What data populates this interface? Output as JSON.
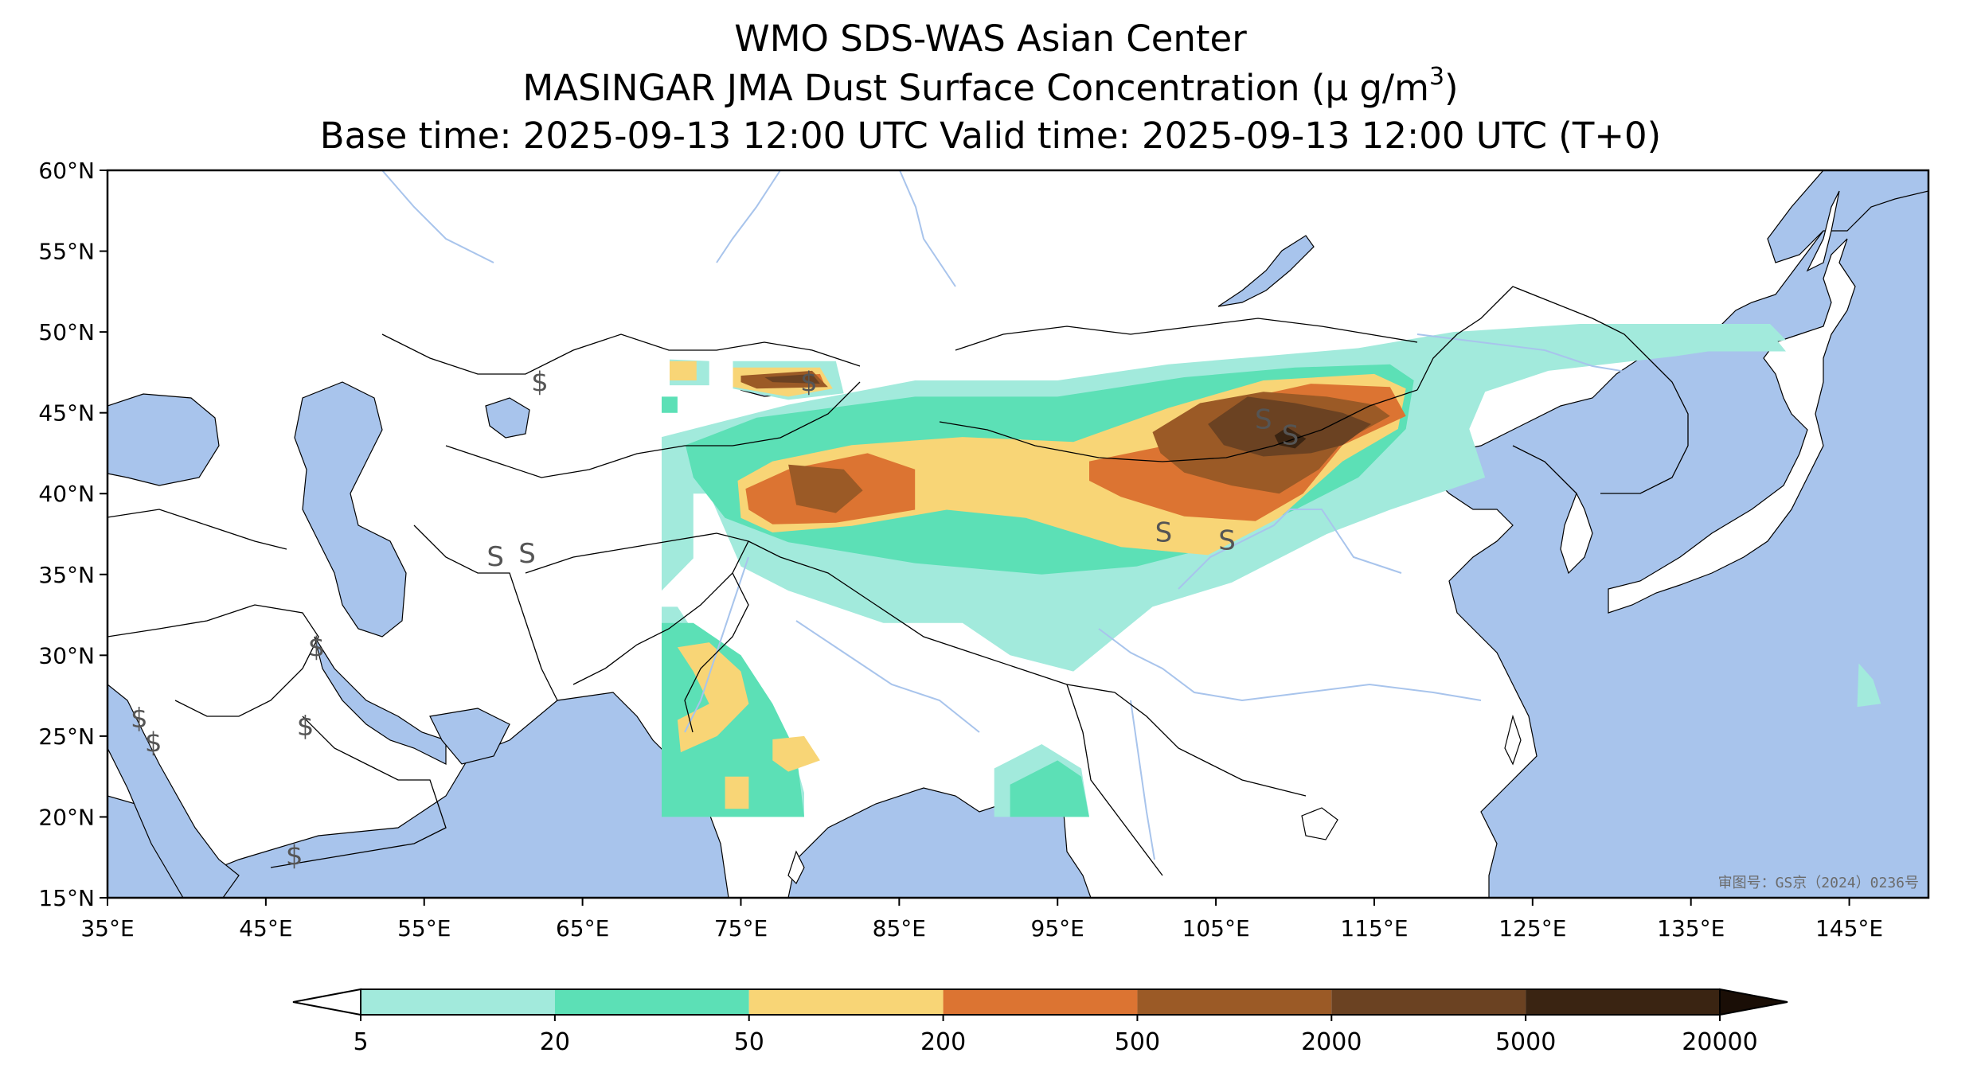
{
  "title": {
    "line1": "WMO SDS-WAS Asian Center",
    "line2_prefix": "MASINGAR JMA Dust Surface Concentration (",
    "line2_unit": "μ g/m",
    "line2_exp": "3",
    "line2_suffix": ")",
    "line3": "Base time: 2025-09-13 12:00 UTC Valid time: 2025-09-13 12:00 UTC (T+0)"
  },
  "map": {
    "lon_range": [
      35,
      150
    ],
    "lat_range": [
      15,
      60
    ],
    "lon_ticks": [
      "35°E",
      "45°E",
      "55°E",
      "65°E",
      "75°E",
      "85°E",
      "95°E",
      "105°E",
      "115°E",
      "125°E",
      "135°E",
      "145°E"
    ],
    "lat_ticks": [
      "15°N",
      "20°N",
      "25°N",
      "30°N",
      "35°N",
      "40°N",
      "45°N",
      "50°N",
      "55°N",
      "60°N"
    ],
    "approval_number": "审图号：GS京（2024）0236号",
    "colors": {
      "ocean": "#a8c4ec",
      "land": "#ffffff",
      "border": "#000000",
      "river": "#a8c4ec",
      "lake": "#a8c4ec"
    },
    "station_marks": [
      {
        "lon": 61.5,
        "lat": 36.2,
        "symbol": "S"
      },
      {
        "lon": 59.5,
        "lat": 36.0,
        "symbol": "S"
      },
      {
        "lon": 62.3,
        "lat": 46.8,
        "symbol": "$"
      },
      {
        "lon": 37.0,
        "lat": 26.0,
        "symbol": "$"
      },
      {
        "lon": 37.9,
        "lat": 24.5,
        "symbol": "$"
      },
      {
        "lon": 47.5,
        "lat": 25.5,
        "symbol": "$"
      },
      {
        "lon": 48.2,
        "lat": 30.4,
        "symbol": "$"
      },
      {
        "lon": 46.8,
        "lat": 17.5,
        "symbol": "$"
      },
      {
        "lon": 79.3,
        "lat": 46.8,
        "symbol": "$"
      },
      {
        "lon": 101.7,
        "lat": 37.5,
        "symbol": "S"
      },
      {
        "lon": 105.7,
        "lat": 37.0,
        "symbol": "S"
      },
      {
        "lon": 108.0,
        "lat": 44.5,
        "symbol": "S"
      },
      {
        "lon": 109.7,
        "lat": 43.5,
        "symbol": "S"
      }
    ]
  },
  "chart_data": {
    "type": "heatmap",
    "variable": "Dust Surface Concentration",
    "unit": "μg/m3",
    "domain": {
      "lon": [
        70,
        150
      ],
      "lat": [
        20,
        50
      ]
    },
    "colorbar": {
      "ticks": [
        "5",
        "20",
        "50",
        "200",
        "500",
        "2000",
        "5000",
        "20000"
      ],
      "bins": [
        {
          "range": [
            5,
            20
          ],
          "color": "#a2eadc"
        },
        {
          "range": [
            20,
            50
          ],
          "color": "#5ce0b6"
        },
        {
          "range": [
            50,
            200
          ],
          "color": "#f8d576"
        },
        {
          "range": [
            200,
            500
          ],
          "color": "#dc7432"
        },
        {
          "range": [
            500,
            2000
          ],
          "color": "#9b5a26"
        },
        {
          "range": [
            2000,
            5000
          ],
          "color": "#6b4222"
        },
        {
          "range": [
            5000,
            20000
          ],
          "color": "#3a2412"
        }
      ],
      "under_color": "#ffffff",
      "over_color": "#1a0e06",
      "extend": "both"
    },
    "regions": [
      {
        "level": "5-20",
        "color": "#a2eadc",
        "polys": [
          [
            [
              70,
              43.5
            ],
            [
              78,
              45.5
            ],
            [
              86,
              47
            ],
            [
              95,
              47
            ],
            [
              102,
              48
            ],
            [
              108,
              48.5
            ],
            [
              114,
              49
            ],
            [
              120,
              50
            ],
            [
              128,
              50.5
            ],
            [
              140,
              50.5
            ],
            [
              141,
              49.5
            ],
            [
              134,
              48.5
            ],
            [
              126,
              47.6
            ],
            [
              122,
              46.3
            ],
            [
              121,
              44
            ],
            [
              122,
              41
            ],
            [
              116,
              39
            ],
            [
              112,
              37.5
            ],
            [
              106,
              34.5
            ],
            [
              101,
              33
            ],
            [
              96,
              29
            ],
            [
              92,
              30
            ],
            [
              89,
              32
            ],
            [
              84,
              32
            ],
            [
              78,
              34
            ],
            [
              75,
              35.5
            ],
            [
              73,
              40
            ],
            [
              70,
              40
            ]
          ],
          [
            [
              70,
              42.5
            ],
            [
              72,
              42
            ],
            [
              72,
              36
            ],
            [
              70,
              34
            ]
          ],
          [
            [
              70,
              20
            ],
            [
              79,
              20
            ],
            [
              79,
              21.5
            ],
            [
              78,
              25
            ],
            [
              75,
              27
            ],
            [
              73,
              30
            ],
            [
              71,
              33
            ],
            [
              70,
              33
            ]
          ],
          [
            [
              91,
              20
            ],
            [
              97,
              20
            ],
            [
              96.5,
              23
            ],
            [
              94,
              24.5
            ],
            [
              91,
              23
            ]
          ],
          [
            [
              70.5,
              48.3
            ],
            [
              73,
              48.2
            ],
            [
              73,
              46.7
            ],
            [
              70.5,
              46.7
            ]
          ],
          [
            [
              74.5,
              48.2
            ],
            [
              81,
              48.2
            ],
            [
              81.5,
              46.2
            ],
            [
              78,
              45.8
            ],
            [
              74.5,
              46.5
            ]
          ],
          [
            [
              145.6,
              29.5
            ],
            [
              146.5,
              28.5
            ],
            [
              147,
              27
            ],
            [
              145.5,
              26.8
            ]
          ],
          [
            [
              123,
              50
            ],
            [
              140,
              50
            ],
            [
              141,
              48.8
            ],
            [
              123,
              48.8
            ]
          ]
        ]
      },
      {
        "level": "20-50",
        "color": "#5ce0b6",
        "polys": [
          [
            [
              71.5,
              43
            ],
            [
              76,
              44.7
            ],
            [
              86,
              46
            ],
            [
              95,
              46
            ],
            [
              103,
              47.2
            ],
            [
              110,
              47.8
            ],
            [
              116,
              48
            ],
            [
              117.5,
              47
            ],
            [
              117,
              44
            ],
            [
              114,
              41
            ],
            [
              110,
              39
            ],
            [
              104,
              36.5
            ],
            [
              100,
              35.5
            ],
            [
              94,
              35
            ],
            [
              86,
              35.7
            ],
            [
              78,
              37
            ],
            [
              74,
              38.5
            ],
            [
              72,
              41
            ]
          ],
          [
            [
              70,
              32
            ],
            [
              72,
              32
            ],
            [
              75,
              30
            ],
            [
              77,
              27
            ],
            [
              78.5,
              24
            ],
            [
              79,
              20
            ],
            [
              70,
              20
            ]
          ],
          [
            [
              92,
              20
            ],
            [
              97,
              20
            ],
            [
              96.5,
              22.5
            ],
            [
              95,
              23.5
            ],
            [
              92,
              22
            ]
          ],
          [
            [
              70,
              46
            ],
            [
              71,
              46
            ],
            [
              71,
              45
            ],
            [
              70,
              45
            ]
          ]
        ]
      },
      {
        "level": "50-200",
        "color": "#f8d576",
        "polys": [
          [
            [
              74.8,
              40.8
            ],
            [
              77,
              42
            ],
            [
              82,
              43
            ],
            [
              89,
              43.5
            ],
            [
              96,
              43.2
            ],
            [
              102,
              45.3
            ],
            [
              108,
              47
            ],
            [
              115,
              47.4
            ],
            [
              117,
              46.5
            ],
            [
              116.5,
              44
            ],
            [
              113,
              42
            ],
            [
              109,
              38.5
            ],
            [
              104.5,
              36.2
            ],
            [
              99,
              36.7
            ],
            [
              93,
              38.5
            ],
            [
              88,
              39
            ],
            [
              82,
              38
            ],
            [
              77,
              37.6
            ],
            [
              75,
              38.5
            ]
          ],
          [
            [
              74.5,
              47.8
            ],
            [
              80,
              47.8
            ],
            [
              80.8,
              46.5
            ],
            [
              78,
              46
            ],
            [
              74.5,
              46.6
            ]
          ],
          [
            [
              70.5,
              48.2
            ],
            [
              72.2,
              48.2
            ],
            [
              72.2,
              47
            ],
            [
              70.5,
              47
            ]
          ],
          [
            [
              71,
              30.5
            ],
            [
              73,
              30.8
            ],
            [
              75,
              29
            ],
            [
              75.5,
              27
            ],
            [
              73.5,
              25
            ],
            [
              71.2,
              24
            ],
            [
              71,
              26
            ],
            [
              73,
              27
            ],
            [
              72,
              29
            ]
          ],
          [
            [
              74,
              22.5
            ],
            [
              75.5,
              22.5
            ],
            [
              75.5,
              20.5
            ],
            [
              74,
              20.5
            ]
          ],
          [
            [
              77,
              24.8
            ],
            [
              79,
              25
            ],
            [
              80,
              23.5
            ],
            [
              78,
              22.8
            ],
            [
              77,
              23.5
            ]
          ]
        ]
      },
      {
        "level": "200-500",
        "color": "#dc7432",
        "polys": [
          [
            [
              75.3,
              40.3
            ],
            [
              78,
              41.5
            ],
            [
              83,
              42.5
            ],
            [
              86,
              41.5
            ],
            [
              86,
              39
            ],
            [
              81,
              38.2
            ],
            [
              77,
              38.1
            ],
            [
              75.5,
              39
            ]
          ],
          [
            [
              97,
              42
            ],
            [
              102,
              43
            ],
            [
              105,
              45.5
            ],
            [
              111,
              46.8
            ],
            [
              116,
              46.6
            ],
            [
              117,
              44.8
            ],
            [
              113,
              43
            ],
            [
              110.5,
              40
            ],
            [
              107.5,
              38.3
            ],
            [
              103,
              38.6
            ],
            [
              99,
              39.8
            ],
            [
              97,
              40.8
            ]
          ],
          [
            [
              78.5,
              47.3
            ],
            [
              80,
              47.4
            ],
            [
              80.3,
              46.7
            ],
            [
              78.5,
              46.7
            ]
          ]
        ]
      },
      {
        "level": "500-2000",
        "color": "#9b5a26",
        "polys": [
          [
            [
              78,
              41.8
            ],
            [
              81.5,
              41.5
            ],
            [
              82.7,
              40.2
            ],
            [
              81,
              38.8
            ],
            [
              78.5,
              39.3
            ]
          ],
          [
            [
              101,
              43.8
            ],
            [
              104,
              45.6
            ],
            [
              108,
              46.3
            ],
            [
              112,
              46
            ],
            [
              115,
              45.5
            ],
            [
              116,
              44.8
            ],
            [
              113,
              43.2
            ],
            [
              111.5,
              41.5
            ],
            [
              109,
              40
            ],
            [
              106,
              40.5
            ],
            [
              103,
              41.3
            ],
            [
              101.5,
              42.5
            ]
          ],
          [
            [
              75,
              47.3
            ],
            [
              79.5,
              47.6
            ],
            [
              80.5,
              46.6
            ],
            [
              76,
              46.5
            ],
            [
              75,
              46.9
            ]
          ]
        ]
      },
      {
        "level": "2000-5000",
        "color": "#6b4222",
        "polys": [
          [
            [
              104.5,
              44.3
            ],
            [
              107,
              46
            ],
            [
              110,
              45.6
            ],
            [
              113,
              45
            ],
            [
              114.8,
              44.3
            ],
            [
              113,
              43
            ],
            [
              111,
              42.5
            ],
            [
              108,
              42.3
            ],
            [
              105.5,
              43
            ]
          ],
          [
            [
              76.5,
              47.2
            ],
            [
              79.5,
              47.4
            ],
            [
              80,
              46.8
            ],
            [
              77,
              46.9
            ]
          ]
        ]
      },
      {
        "level": "5000-20000",
        "color": "#3a2412",
        "polys": [
          [
            [
              108.7,
              43.6
            ],
            [
              109.5,
              44.1
            ],
            [
              110.7,
              43.4
            ],
            [
              110,
              42.8
            ],
            [
              109,
              43
            ]
          ]
        ]
      }
    ]
  }
}
